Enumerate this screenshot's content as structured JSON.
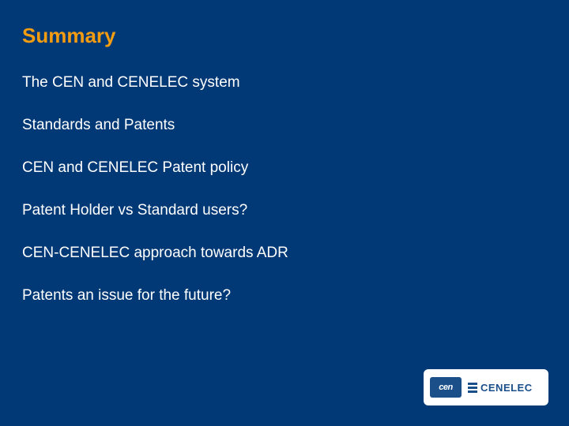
{
  "slide": {
    "title": "Summary",
    "items": [
      "The CEN and CENELEC system",
      "Standards and Patents",
      "CEN and CENELEC Patent policy",
      "Patent Holder vs Standard users?",
      "CEN-CENELEC approach towards ADR",
      "Patents an issue for the future?"
    ],
    "background_color": "#003976",
    "title_color": "#f39c12",
    "text_color": "#ffffff",
    "title_fontsize": 26,
    "item_fontsize": 19,
    "item_spacing": 32
  },
  "logo": {
    "cen_label": "cen",
    "cenelec_label": "CENELEC",
    "box_bg": "#ffffff",
    "brand_color": "#1a4f8a"
  }
}
